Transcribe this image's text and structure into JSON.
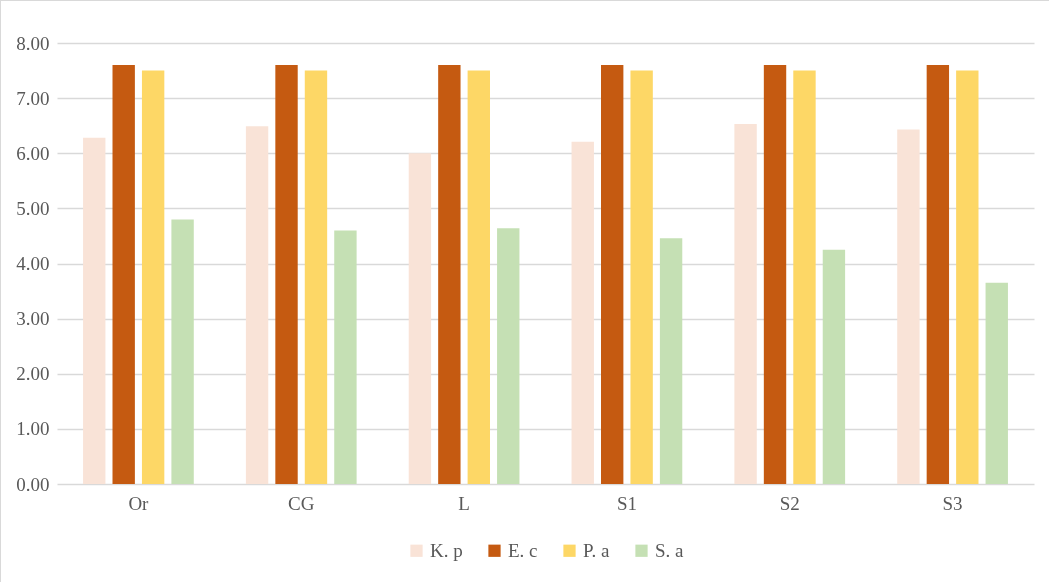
{
  "chart_data": {
    "type": "bar",
    "categories": [
      "Or",
      "CG",
      "L",
      "S1",
      "S2",
      "S3"
    ],
    "series": [
      {
        "name": "K. p",
        "color": "#f9e3d7",
        "values": [
          6.28,
          6.49,
          6.0,
          6.21,
          6.53,
          6.43
        ]
      },
      {
        "name": "E. c",
        "color": "#c55a11",
        "values": [
          7.6,
          7.6,
          7.6,
          7.6,
          7.6,
          7.6
        ]
      },
      {
        "name": "P. a",
        "color": "#fdd766",
        "values": [
          7.5,
          7.5,
          7.5,
          7.5,
          7.5,
          7.5
        ]
      },
      {
        "name": "S. a",
        "color": "#c5e0b4",
        "values": [
          4.8,
          4.6,
          4.64,
          4.46,
          4.25,
          3.65
        ]
      }
    ],
    "ylim": [
      0,
      8
    ],
    "yticks": [
      {
        "value": 0,
        "label": "0.00"
      },
      {
        "value": 1,
        "label": "1.00"
      },
      {
        "value": 2,
        "label": "2.00"
      },
      {
        "value": 3,
        "label": "3.00"
      },
      {
        "value": 4,
        "label": "4.00"
      },
      {
        "value": 5,
        "label": "5.00"
      },
      {
        "value": 6,
        "label": "6.00"
      },
      {
        "value": 7,
        "label": "7.00"
      },
      {
        "value": 8,
        "label": "8.00"
      }
    ],
    "grid": "y",
    "legend": "bottom"
  }
}
